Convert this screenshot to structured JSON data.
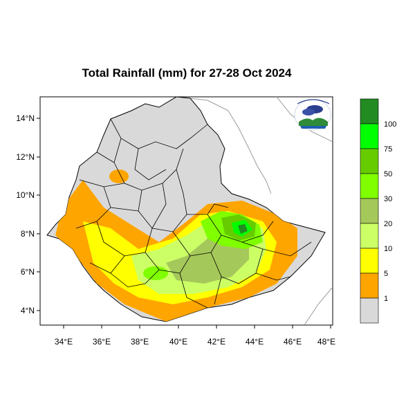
{
  "title": "Total Rainfall (mm) for 27-28 Oct 2024",
  "colors": {
    "land_gray": "#d9d9d9",
    "class_1": "#ffa500",
    "class_5": "#ffff00",
    "class_10": "#ccff66",
    "class_20": "#a5c85a",
    "class_30": "#7fff00",
    "class_50": "#66cc00",
    "class_75": "#00ff00",
    "class_100": "#228b22"
  },
  "map": {
    "lat_ticks": [
      "4°N",
      "6°N",
      "8°N",
      "10°N",
      "12°N",
      "14°N"
    ],
    "lon_ticks": [
      "34°E",
      "36°E",
      "38°E",
      "40°E",
      "42°E",
      "44°E",
      "46°E",
      "48°E"
    ],
    "logo_icon": "ethiopian-meteorology-institute-logo"
  },
  "legend": {
    "labels": [
      "1",
      "5",
      "10",
      "20",
      "30",
      "50",
      "75",
      "100"
    ]
  }
}
